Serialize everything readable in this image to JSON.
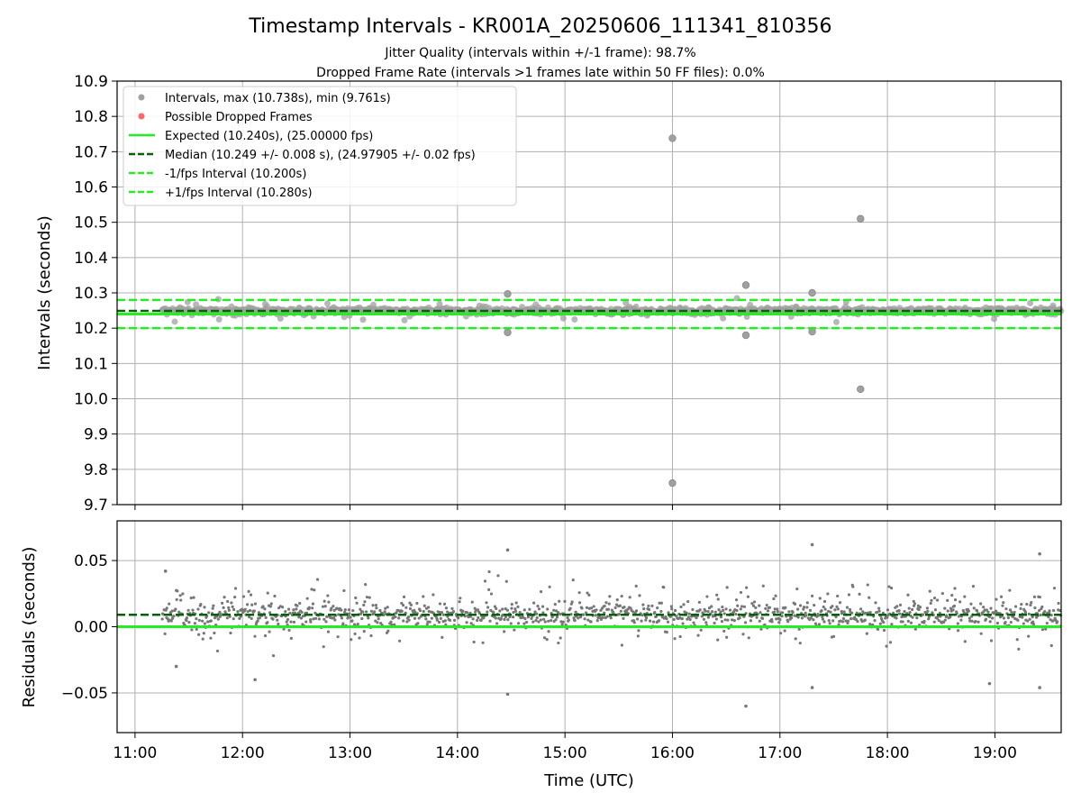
{
  "figure": {
    "title": "Timestamp Intervals - KR001A_20250606_111341_810356",
    "subtitle_1": "Jitter Quality (intervals within +/-1 frame): 98.7%",
    "subtitle_2": "Dropped Frame Rate (intervals >1 frames late within 50 FF files): 0.0%",
    "xlabel": "Time (UTC)"
  },
  "chart_data": [
    {
      "type": "scatter",
      "panel": "intervals",
      "ylabel": "Intervals (seconds)",
      "xlim": [
        "10:50",
        "19:37"
      ],
      "ylim": [
        9.7,
        10.9
      ],
      "yticks": [
        "9.7",
        "9.8",
        "9.9",
        "10.0",
        "10.1",
        "10.2",
        "10.3",
        "10.4",
        "10.5",
        "10.6",
        "10.7",
        "10.8",
        "10.9"
      ],
      "xticks": [
        "11:00",
        "12:00",
        "13:00",
        "14:00",
        "15:00",
        "16:00",
        "17:00",
        "18:00",
        "19:00"
      ],
      "grid": true,
      "legend_position": "top-left",
      "colors": {
        "points": "#a0a0a0",
        "dropped": "#ff6666",
        "expected": "#22ee22",
        "median": "#006400",
        "bounds": "#22ee22"
      },
      "x_range": [
        "11:15",
        "19:37"
      ],
      "lines": {
        "expected": 10.24,
        "median": 10.249,
        "minus_1_fps": 10.2,
        "plus_1_fps": 10.28
      },
      "series": [
        {
          "name": "Intervals, max (10.738s), min (9.761s)",
          "kind": "points"
        },
        {
          "name": "Possible Dropped Frames",
          "kind": "points"
        },
        {
          "name": "Expected (10.240s), (25.00000 fps)",
          "kind": "line"
        },
        {
          "name": "Median (10.249 +/- 0.008 s), (24.97905 +/- 0.02 fps)",
          "kind": "dashed"
        },
        {
          "name": "-1/fps Interval (10.200s)",
          "kind": "dashed"
        },
        {
          "name": "+1/fps Interval (10.280s)",
          "kind": "dashed"
        }
      ],
      "notable_points": [
        {
          "x": "16:00",
          "y": 10.738
        },
        {
          "x": "16:00",
          "y": 9.761
        },
        {
          "x": "17:45",
          "y": 10.51
        },
        {
          "x": "17:45",
          "y": 10.027
        },
        {
          "x": "16:41",
          "y": 10.322
        },
        {
          "x": "17:18",
          "y": 10.3
        },
        {
          "x": "14:28",
          "y": 10.297
        },
        {
          "x": "14:28",
          "y": 10.188
        },
        {
          "x": "16:41",
          "y": 10.18
        },
        {
          "x": "17:18",
          "y": 10.19
        }
      ]
    },
    {
      "type": "scatter",
      "panel": "residuals",
      "ylabel": "Residuals (seconds)",
      "xlim": [
        "10:50",
        "19:37"
      ],
      "ylim": [
        -0.08,
        0.08
      ],
      "yticks": [
        "−0.05",
        "0.00",
        "0.05"
      ],
      "ytick_values": [
        -0.05,
        0.0,
        0.05
      ],
      "xticks": [
        "11:00",
        "12:00",
        "13:00",
        "14:00",
        "15:00",
        "16:00",
        "17:00",
        "18:00",
        "19:00"
      ],
      "grid": true,
      "lines": {
        "zero": 0.0,
        "median_offset": 0.009
      },
      "notable_points": [
        {
          "x": "11:17",
          "y": 0.042
        },
        {
          "x": "11:23",
          "y": -0.03
        },
        {
          "x": "12:07",
          "y": -0.04
        },
        {
          "x": "14:28",
          "y": 0.058
        },
        {
          "x": "14:28",
          "y": -0.051
        },
        {
          "x": "16:41",
          "y": -0.06
        },
        {
          "x": "17:18",
          "y": 0.062
        },
        {
          "x": "17:18",
          "y": -0.046
        },
        {
          "x": "19:25",
          "y": 0.055
        },
        {
          "x": "19:25",
          "y": -0.046
        },
        {
          "x": "18:57",
          "y": -0.043
        }
      ]
    }
  ]
}
